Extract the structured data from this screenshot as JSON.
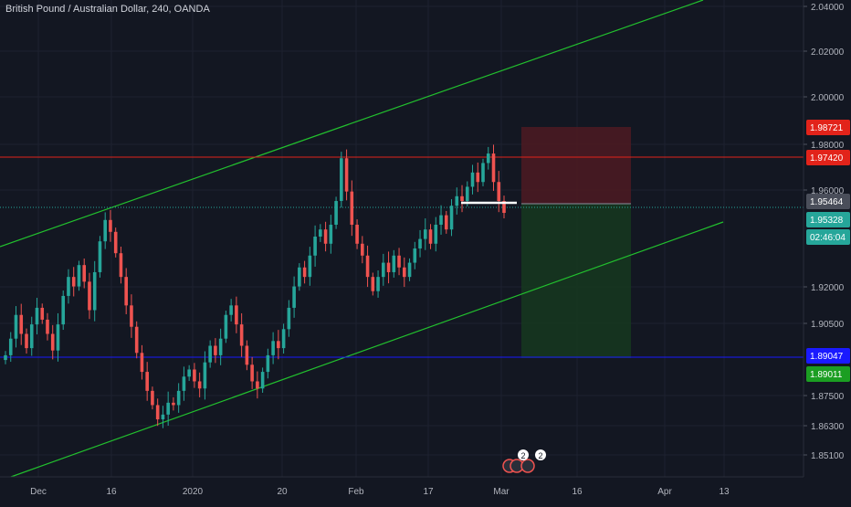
{
  "header": {
    "symbol_title": "British Pound / Australian Dollar, 240, OANDA"
  },
  "colors": {
    "background": "#131722",
    "grid": "#1e2230",
    "axis_text": "#b2b5be",
    "candle_up": "#26a69a",
    "candle_down": "#ef5350",
    "channel_line": "#22c02e",
    "resistance_line": "#e2231a",
    "support_line": "#1a1aff",
    "stop_zone": "#4a1a22",
    "target_zone": "#16361f",
    "current_price_line": "#26a69a",
    "entry_marker": "#ffffff"
  },
  "chart_data": {
    "type": "candlestick",
    "title": "British Pound / Australian Dollar, 240, OANDA",
    "x_ticks": [
      "Dec",
      "16",
      "2020",
      "20",
      "Feb",
      "17",
      "Mar",
      "16",
      "Apr",
      "13"
    ],
    "y_ticks": [
      "2.04000",
      "2.02000",
      "2.00000",
      "1.98000",
      "1.96000",
      "1.92000",
      "1.90500",
      "1.87500",
      "1.86300",
      "1.85100"
    ],
    "ylim": [
      1.84,
      2.04
    ],
    "series": [
      {
        "name": "close",
        "values": [
          1.893,
          1.9,
          1.91,
          1.902,
          1.896,
          1.906,
          1.913,
          1.908,
          1.902,
          1.895,
          1.906,
          1.918,
          1.926,
          1.922,
          1.931,
          1.924,
          1.912,
          1.928,
          1.941,
          1.95,
          1.945,
          1.936,
          1.926,
          1.914,
          1.905,
          1.894,
          1.886,
          1.878,
          1.872,
          1.866,
          1.868,
          1.873,
          1.872,
          1.878,
          1.884,
          1.887,
          1.882,
          1.879,
          1.89,
          1.897,
          1.893,
          1.9,
          1.91,
          1.914,
          1.906,
          1.897,
          1.889,
          1.882,
          1.879,
          1.886,
          1.893,
          1.899,
          1.896,
          1.904,
          1.913,
          1.922,
          1.93,
          1.926,
          1.935,
          1.943,
          1.946,
          1.94,
          1.948,
          1.958,
          1.976,
          1.962,
          1.948,
          1.94,
          1.935,
          1.926,
          1.92,
          1.926,
          1.932,
          1.928,
          1.935,
          1.93,
          1.926,
          1.932,
          1.938,
          1.942,
          1.946,
          1.94,
          1.948,
          1.952,
          1.946,
          1.956,
          1.96,
          1.958,
          1.964,
          1.97,
          1.966,
          1.974,
          1.978,
          1.966,
          1.958,
          1.953
        ]
      }
    ],
    "annotations": {
      "price_labels": [
        {
          "value": "1.98721",
          "bg": "#e2231a",
          "fg": "#ffffff"
        },
        {
          "value": "1.97420",
          "bg": "#e2231a",
          "fg": "#ffffff"
        },
        {
          "value": "1.95464",
          "bg": "#4a4e5a",
          "fg": "#ffffff"
        },
        {
          "value": "1.95328",
          "bg": "#26a69a",
          "fg": "#ffffff"
        },
        {
          "value": "02:46:04",
          "bg": "#26a69a",
          "fg": "#ffffff"
        },
        {
          "value": "1.89047",
          "bg": "#1a1aff",
          "fg": "#ffffff"
        },
        {
          "value": "1.89011",
          "bg": "#1b9e22",
          "fg": "#ffffff"
        }
      ],
      "horizontal_lines": [
        {
          "name": "resistance",
          "value": 1.9742
        },
        {
          "name": "support",
          "value": 1.89047
        },
        {
          "name": "current-price",
          "value": 1.95328
        }
      ],
      "event_badges": [
        "2",
        "2"
      ]
    }
  }
}
